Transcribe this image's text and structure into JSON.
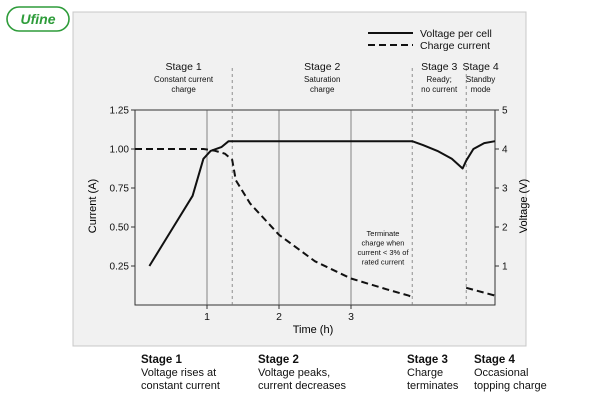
{
  "logo": {
    "text": "Ufine",
    "color": "#2e9c3a"
  },
  "chart_data": {
    "type": "line",
    "xlabel": "Time (h)",
    "ylabel_left": "Current (A)",
    "ylabel_right": "Voltage (V)",
    "xlim": [
      0,
      5
    ],
    "ylim_left": [
      0,
      1.25
    ],
    "ylim_right": [
      0,
      5
    ],
    "x_ticks": [
      1,
      2,
      3
    ],
    "y_ticks_left": [
      "0.25",
      "0.50",
      "0.75",
      "1.00",
      "1.25"
    ],
    "y_ticks_right": [
      "1",
      "2",
      "3",
      "4",
      "5"
    ],
    "grid": "vertical",
    "legend_position": "top-right",
    "series": [
      {
        "name": "Voltage per cell",
        "axis": "right",
        "style": "solid",
        "x": [
          0.2,
          0.5,
          0.8,
          0.95,
          1.05,
          1.2,
          1.3,
          1.6,
          2.0,
          2.5,
          3.0,
          3.5,
          3.85,
          4.0,
          4.2,
          4.4,
          4.55,
          4.6,
          4.7,
          4.85,
          5.0
        ],
        "y": [
          1.0,
          1.9,
          2.8,
          3.75,
          3.95,
          4.05,
          4.2,
          4.2,
          4.2,
          4.2,
          4.2,
          4.2,
          4.2,
          4.1,
          3.95,
          3.75,
          3.5,
          3.7,
          4.0,
          4.15,
          4.2
        ]
      },
      {
        "name": "Charge current",
        "axis": "left",
        "style": "dashed",
        "x": [
          0.0,
          0.4,
          0.8,
          0.95,
          1.1,
          1.25,
          1.35,
          1.4,
          1.6,
          2.0,
          2.5,
          3.0,
          3.5,
          3.8,
          3.85
        ],
        "y": [
          1.0,
          1.0,
          1.0,
          1.0,
          0.99,
          0.97,
          0.93,
          0.8,
          0.65,
          0.45,
          0.28,
          0.17,
          0.1,
          0.06,
          0.05
        ]
      },
      {
        "name": "Topping charge",
        "axis": "left",
        "style": "dashed",
        "x": [
          4.6,
          5.0
        ],
        "y": [
          0.11,
          0.06
        ]
      }
    ],
    "stage_boundaries": [
      1.35,
      3.85,
      4.6
    ],
    "stages": [
      {
        "title": "Stage 1",
        "desc1": "Constant current",
        "desc2": "charge"
      },
      {
        "title": "Stage 2",
        "desc1": "Saturation",
        "desc2": "charge"
      },
      {
        "title": "Stage 3",
        "desc1": "Ready;",
        "desc2": "no current"
      },
      {
        "title": "Stage 4",
        "desc1": "Standby",
        "desc2": "mode"
      }
    ],
    "annotation": {
      "lines": [
        "Terminate",
        "charge when",
        "current < 3% of",
        "rated current"
      ]
    }
  },
  "captions": [
    {
      "title": "Stage 1",
      "line1": "Voltage rises at",
      "line2": "constant current"
    },
    {
      "title": "Stage 2",
      "line1": "Voltage peaks,",
      "line2": "current decreases"
    },
    {
      "title": "Stage 3",
      "line1": "Charge",
      "line2": "terminates"
    },
    {
      "title": "Stage 4",
      "line1": "Occasional",
      "line2": "topping charge"
    }
  ]
}
